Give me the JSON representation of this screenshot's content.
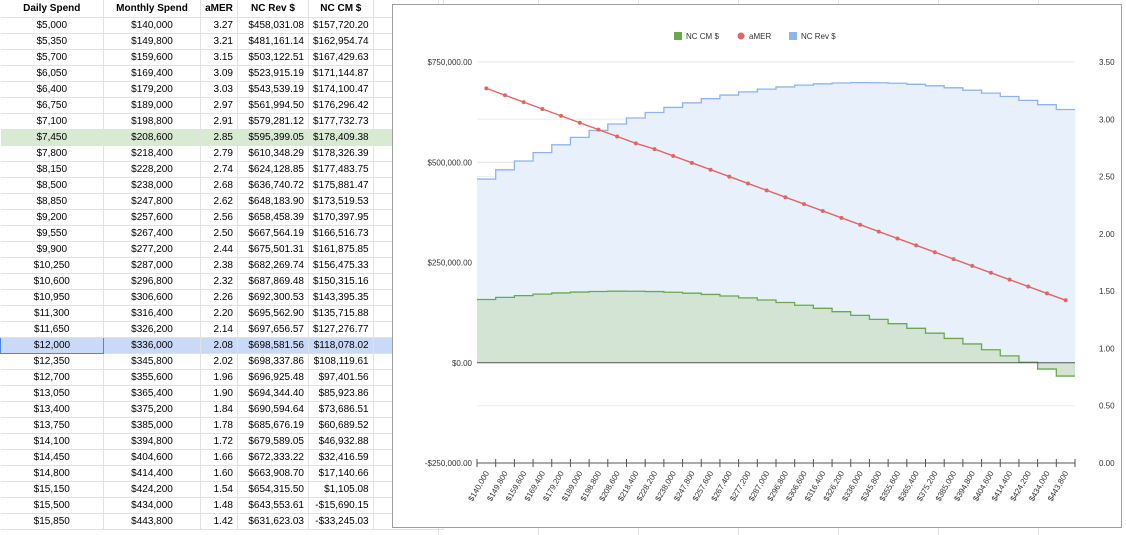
{
  "sheet": {
    "headers": [
      "Daily Spend",
      "Monthly Spend",
      "aMER",
      "NC Rev $",
      "NC CM $"
    ],
    "rows": [
      [
        "$5,000",
        "$140,000",
        "3.27",
        "$458,031.08",
        "$157,720.20"
      ],
      [
        "$5,350",
        "$149,800",
        "3.21",
        "$481,161.14",
        "$162,954.74"
      ],
      [
        "$5,700",
        "$159,600",
        "3.15",
        "$503,122.51",
        "$167,429.63"
      ],
      [
        "$6,050",
        "$169,400",
        "3.09",
        "$523,915.19",
        "$171,144.87"
      ],
      [
        "$6,400",
        "$179,200",
        "3.03",
        "$543,539.19",
        "$174,100.47"
      ],
      [
        "$6,750",
        "$189,000",
        "2.97",
        "$561,994.50",
        "$176,296.42"
      ],
      [
        "$7,100",
        "$198,800",
        "2.91",
        "$579,281.12",
        "$177,732.73"
      ],
      [
        "$7,450",
        "$208,600",
        "2.85",
        "$595,399.05",
        "$178,409.38"
      ],
      [
        "$7,800",
        "$218,400",
        "2.79",
        "$610,348.29",
        "$178,326.39"
      ],
      [
        "$8,150",
        "$228,200",
        "2.74",
        "$624,128.85",
        "$177,483.75"
      ],
      [
        "$8,500",
        "$238,000",
        "2.68",
        "$636,740.72",
        "$175,881.47"
      ],
      [
        "$8,850",
        "$247,800",
        "2.62",
        "$648,183.90",
        "$173,519.53"
      ],
      [
        "$9,200",
        "$257,600",
        "2.56",
        "$658,458.39",
        "$170,397.95"
      ],
      [
        "$9,550",
        "$267,400",
        "2.50",
        "$667,564.19",
        "$166,516.73"
      ],
      [
        "$9,900",
        "$277,200",
        "2.44",
        "$675,501.31",
        "$161,875.85"
      ],
      [
        "$10,250",
        "$287,000",
        "2.38",
        "$682,269.74",
        "$156,475.33"
      ],
      [
        "$10,600",
        "$296,800",
        "2.32",
        "$687,869.48",
        "$150,315.16"
      ],
      [
        "$10,950",
        "$306,600",
        "2.26",
        "$692,300.53",
        "$143,395.35"
      ],
      [
        "$11,300",
        "$316,400",
        "2.20",
        "$695,562.90",
        "$135,715.88"
      ],
      [
        "$11,650",
        "$326,200",
        "2.14",
        "$697,656.57",
        "$127,276.77"
      ],
      [
        "$12,000",
        "$336,000",
        "2.08",
        "$698,581.56",
        "$118,078.02"
      ],
      [
        "$12,350",
        "$345,800",
        "2.02",
        "$698,337.86",
        "$108,119.61"
      ],
      [
        "$12,700",
        "$355,600",
        "1.96",
        "$696,925.48",
        "$97,401.56"
      ],
      [
        "$13,050",
        "$365,400",
        "1.90",
        "$694,344.40",
        "$85,923.86"
      ],
      [
        "$13,400",
        "$375,200",
        "1.84",
        "$690,594.64",
        "$73,686.51"
      ],
      [
        "$13,750",
        "$385,000",
        "1.78",
        "$685,676.19",
        "$60,689.52"
      ],
      [
        "$14,100",
        "$394,800",
        "1.72",
        "$679,589.05",
        "$46,932.88"
      ],
      [
        "$14,450",
        "$404,600",
        "1.66",
        "$672,333.22",
        "$32,416.59"
      ],
      [
        "$14,800",
        "$414,400",
        "1.60",
        "$663,908.70",
        "$17,140.66"
      ],
      [
        "$15,150",
        "$424,200",
        "1.54",
        "$654,315.50",
        "$1,105.08"
      ],
      [
        "$15,500",
        "$434,000",
        "1.48",
        "$643,553.61",
        "-$15,690.15"
      ],
      [
        "$15,850",
        "$443,800",
        "1.42",
        "$631,623.03",
        "-$33,245.03"
      ]
    ],
    "highlight_green_row": 7,
    "highlight_blue_row": 20,
    "colors": {
      "green_row": "#d9ead3",
      "blue_row": "#c9daf8",
      "blue_border": "#4a86e8"
    }
  },
  "chart_data": {
    "type": "line",
    "title": "",
    "legend_position": "top",
    "legend": [
      "NC CM $",
      "aMER",
      "NC Rev $"
    ],
    "categories": [
      "$140,000",
      "$149,800",
      "$159,600",
      "$169,400",
      "$179,200",
      "$189,000",
      "$198,800",
      "$208,600",
      "$218,400",
      "$228,200",
      "$238,000",
      "$247,800",
      "$257,600",
      "$267,400",
      "$277,200",
      "$287,000",
      "$296,800",
      "$306,600",
      "$316,400",
      "$326,200",
      "$336,000",
      "$345,800",
      "$355,600",
      "$365,400",
      "$375,200",
      "$385,000",
      "$394,800",
      "$404,600",
      "$414,400",
      "$424,200",
      "$434,000",
      "$443,800"
    ],
    "left_axis": {
      "min": -250000,
      "max": 750000,
      "ticks": [
        750000,
        500000,
        250000,
        0,
        -250000
      ],
      "tick_labels": [
        "$750,000.00",
        "$500,000.00",
        "$250,000.00",
        "$0.00",
        "-$250,000.00"
      ]
    },
    "right_axis": {
      "min": 0,
      "max": 3.5,
      "ticks": [
        3.5,
        3.0,
        2.5,
        2.0,
        1.5,
        1.0,
        0.5,
        0.0
      ],
      "tick_labels": [
        "3.50",
        "3.00",
        "2.50",
        "2.00",
        "1.50",
        "1.00",
        "0.50",
        "0.00"
      ]
    },
    "series": [
      {
        "name": "NC CM $",
        "kind": "stepped-area",
        "axis": "left",
        "color": "#6aa84f",
        "fill": "#d4e4d4",
        "values": [
          157720.2,
          162954.74,
          167429.63,
          171144.87,
          174100.47,
          176296.42,
          177732.73,
          178409.38,
          178326.39,
          177483.75,
          175881.47,
          173519.53,
          170397.95,
          166516.73,
          161875.85,
          156475.33,
          150315.16,
          143395.35,
          135715.88,
          127276.77,
          118078.02,
          108119.61,
          97401.56,
          85923.86,
          73686.51,
          60689.52,
          46932.88,
          32416.59,
          17140.66,
          1105.08,
          -15690.15,
          -33245.03
        ]
      },
      {
        "name": "aMER",
        "kind": "line-markers",
        "axis": "right",
        "color": "#e06666",
        "values": [
          3.27,
          3.21,
          3.15,
          3.09,
          3.03,
          2.97,
          2.91,
          2.85,
          2.79,
          2.74,
          2.68,
          2.62,
          2.56,
          2.5,
          2.44,
          2.38,
          2.32,
          2.26,
          2.2,
          2.14,
          2.08,
          2.02,
          1.96,
          1.9,
          1.84,
          1.78,
          1.72,
          1.66,
          1.6,
          1.54,
          1.48,
          1.42
        ]
      },
      {
        "name": "NC Rev $",
        "kind": "stepped-area",
        "axis": "left",
        "color": "#8eb4f0",
        "fill": "#e8f0fb",
        "values": [
          458031.08,
          481161.14,
          503122.51,
          523915.19,
          543539.19,
          561994.5,
          579281.12,
          595399.05,
          610348.29,
          624128.85,
          636740.72,
          648183.9,
          658458.39,
          667564.19,
          675501.31,
          682269.74,
          687869.48,
          692300.53,
          695562.9,
          697656.57,
          698581.56,
          698337.86,
          696925.48,
          694344.4,
          690594.64,
          685676.19,
          679589.05,
          672333.22,
          663908.7,
          654315.5,
          643553.61,
          631623.03
        ]
      }
    ]
  }
}
